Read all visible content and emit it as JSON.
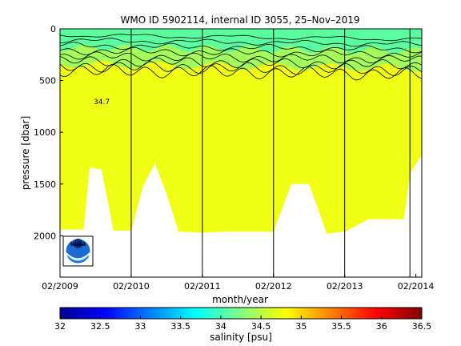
{
  "chart_data": {
    "type": "heatmap",
    "title": "WMO ID 5902114, internal ID 3055, 25–Nov–2019",
    "xlabel": "month/year",
    "ylabel": "pressure [dbar]",
    "x_ticks": [
      {
        "date": "2009-02",
        "label": "02/2009"
      },
      {
        "date": "2010-02",
        "label": "02/2010"
      },
      {
        "date": "2011-02",
        "label": "02/2011"
      },
      {
        "date": "2012-02",
        "label": "02/2012"
      },
      {
        "date": "2013-02",
        "label": "02/2013"
      },
      {
        "date": "2014-02",
        "label": "02/2014"
      }
    ],
    "xlim": [
      "2009-02",
      "2014-03"
    ],
    "y_ticks": [
      0,
      500,
      1000,
      1500,
      2000
    ],
    "ylim": [
      0,
      2400
    ],
    "y_reversed": true,
    "contour_label": "34.7",
    "colorbar": {
      "label": "salinity [psu]",
      "ticks": [
        "32",
        "32.5",
        "33",
        "33.5",
        "34",
        "34.5",
        "35",
        "35.5",
        "36",
        "36.5"
      ],
      "range": [
        32,
        36.5
      ],
      "colors": [
        "#00008f",
        "#0000ff",
        "#0080ff",
        "#00ffff",
        "#80ff80",
        "#ffff00",
        "#ff8000",
        "#ff0000",
        "#800000"
      ]
    },
    "fill_color_main": "#f0ff14",
    "fill_color_surface": "#5affa0",
    "fill_color_mid": "#a5ff5a",
    "profile_bottom_dbar": [
      {
        "date": "2009-02",
        "depth": 1940
      },
      {
        "date": "2009-06",
        "depth": 1940
      },
      {
        "date": "2009-07",
        "depth": 1340
      },
      {
        "date": "2009-09",
        "depth": 1360
      },
      {
        "date": "2009-11",
        "depth": 1950
      },
      {
        "date": "2010-02",
        "depth": 1950
      },
      {
        "date": "2010-04",
        "depth": 1520
      },
      {
        "date": "2010-06",
        "depth": 1300
      },
      {
        "date": "2010-08",
        "depth": 1600
      },
      {
        "date": "2010-10",
        "depth": 1960
      },
      {
        "date": "2011-02",
        "depth": 1970
      },
      {
        "date": "2011-06",
        "depth": 1960
      },
      {
        "date": "2011-10",
        "depth": 1960
      },
      {
        "date": "2012-02",
        "depth": 1960
      },
      {
        "date": "2012-05",
        "depth": 1500
      },
      {
        "date": "2012-08",
        "depth": 1500
      },
      {
        "date": "2012-11",
        "depth": 1980
      },
      {
        "date": "2013-02",
        "depth": 1960
      },
      {
        "date": "2013-06",
        "depth": 1840
      },
      {
        "date": "2013-12",
        "depth": 1840
      },
      {
        "date": "2014-01",
        "depth": 1400
      },
      {
        "date": "2014-03",
        "depth": 1220
      }
    ],
    "float_cycle_markers": [
      "2010-02",
      "2011-02",
      "2012-02",
      "2013-02",
      "2014-01"
    ]
  },
  "logo": {
    "text": "NOAA"
  }
}
